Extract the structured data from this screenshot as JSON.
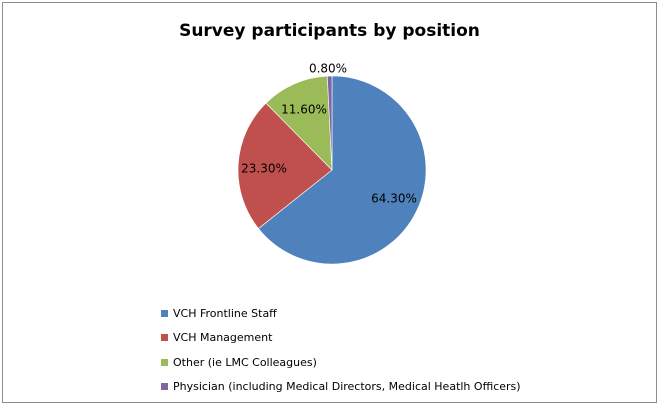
{
  "chart_data": {
    "type": "pie",
    "title": "Survey participants by position",
    "slices": [
      {
        "label": "VCH Frontline Staff",
        "value": 64.3,
        "value_label": "64.30%",
        "color": "#4f81bd"
      },
      {
        "label": "VCH Management",
        "value": 23.3,
        "value_label": "23.30%",
        "color": "#c0504d"
      },
      {
        "label": "Other (ie LMC Colleagues)",
        "value": 11.6,
        "value_label": "11.60%",
        "color": "#9bbb59"
      },
      {
        "label": "Physician (including Medical Directors, Medical Heatlh Officers)",
        "value": 0.8,
        "value_label": "0.80%",
        "color": "#8064a2"
      }
    ],
    "legend_position": "bottom-left",
    "start": "top",
    "direction": "clockwise"
  }
}
